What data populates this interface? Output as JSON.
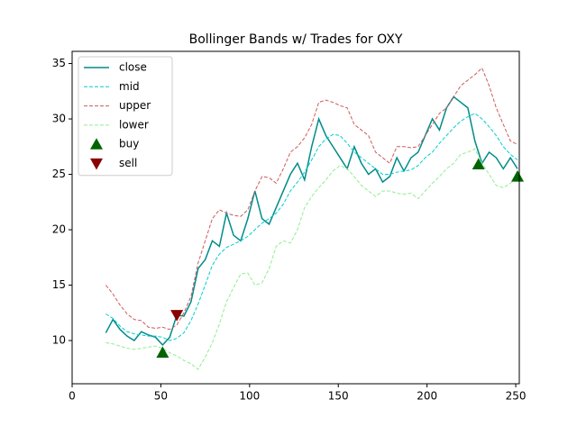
{
  "chart_data": {
    "type": "line",
    "title": "Bollinger Bands w/ Trades for OXY",
    "x": [
      19,
      23,
      27,
      31,
      35,
      39,
      43,
      47,
      51,
      55,
      59,
      63,
      67,
      71,
      75,
      79,
      83,
      87,
      91,
      95,
      99,
      103,
      107,
      111,
      115,
      119,
      123,
      127,
      131,
      135,
      139,
      143,
      147,
      151,
      155,
      159,
      163,
      167,
      171,
      175,
      179,
      183,
      187,
      191,
      195,
      199,
      203,
      207,
      211,
      215,
      219,
      223,
      227,
      231,
      235,
      239,
      243,
      247,
      251
    ],
    "series": [
      {
        "name": "close",
        "color": "#008b8b",
        "linestyle": "solid",
        "values": [
          10.7,
          11.9,
          11.0,
          10.4,
          10.0,
          10.8,
          10.5,
          10.3,
          9.6,
          10.3,
          12.3,
          12.2,
          13.5,
          16.5,
          17.3,
          19.0,
          18.5,
          21.5,
          19.5,
          19.0,
          21.0,
          23.5,
          21.0,
          20.5,
          22.0,
          23.5,
          25.0,
          26.0,
          24.5,
          27.5,
          30.0,
          28.5,
          27.5,
          26.5,
          25.5,
          27.5,
          26.0,
          25.0,
          25.5,
          24.3,
          24.8,
          26.5,
          25.3,
          26.5,
          27.0,
          28.5,
          30.0,
          29.0,
          31.0,
          32.0,
          31.5,
          31.0,
          28.0,
          26.0,
          27.0,
          26.5,
          25.5,
          26.5,
          25.5
        ]
      },
      {
        "name": "mid",
        "color": "#00ced1",
        "linestyle": "dashed",
        "values": [
          12.4,
          12.0,
          11.3,
          10.8,
          10.6,
          10.5,
          10.4,
          10.4,
          10.3,
          10.0,
          10.2,
          10.7,
          11.8,
          13.3,
          15.0,
          16.8,
          17.8,
          18.4,
          18.7,
          19.0,
          19.4,
          20.0,
          20.6,
          21.0,
          21.5,
          22.3,
          23.5,
          24.3,
          25.2,
          26.3,
          27.5,
          28.2,
          28.6,
          28.5,
          27.8,
          27.0,
          26.5,
          26.0,
          25.5,
          25.0,
          25.0,
          25.2,
          25.3,
          25.4,
          25.8,
          26.5,
          27.0,
          27.8,
          28.5,
          29.2,
          29.8,
          30.2,
          30.5,
          30.0,
          29.3,
          28.5,
          27.5,
          26.8,
          26.3
        ]
      },
      {
        "name": "upper",
        "color": "#cd5c5c",
        "linestyle": "dashed",
        "values": [
          15.0,
          14.2,
          13.2,
          12.4,
          11.9,
          11.8,
          11.2,
          11.1,
          11.2,
          11.0,
          11.4,
          12.5,
          14.0,
          17.0,
          19.0,
          21.0,
          21.8,
          21.5,
          21.3,
          21.2,
          21.8,
          23.5,
          24.8,
          24.7,
          24.2,
          25.5,
          27.0,
          27.5,
          28.3,
          29.5,
          31.5,
          31.7,
          31.5,
          31.2,
          31.0,
          29.5,
          29.0,
          28.5,
          27.0,
          26.5,
          26.0,
          27.5,
          27.5,
          27.4,
          27.5,
          28.5,
          29.5,
          30.5,
          31.0,
          32.0,
          33.0,
          33.5,
          34.0,
          34.6,
          33.0,
          31.0,
          29.5,
          28.0,
          27.7
        ]
      },
      {
        "name": "lower",
        "color": "#90ee90",
        "linestyle": "dashed",
        "values": [
          9.8,
          9.7,
          9.5,
          9.3,
          9.2,
          9.3,
          9.4,
          9.5,
          9.3,
          8.9,
          8.6,
          8.2,
          7.9,
          7.4,
          8.5,
          9.8,
          11.5,
          13.5,
          14.8,
          16.0,
          16.1,
          15.0,
          15.2,
          16.5,
          18.5,
          19.0,
          18.8,
          20.0,
          22.0,
          23.0,
          23.8,
          24.5,
          25.3,
          25.8,
          25.5,
          24.8,
          24.0,
          23.5,
          23.0,
          23.5,
          23.5,
          23.3,
          23.2,
          23.3,
          22.8,
          23.5,
          24.2,
          24.8,
          25.5,
          26.0,
          26.8,
          27.0,
          27.3,
          26.0,
          25.0,
          24.0,
          23.8,
          24.2,
          24.6
        ]
      },
      {
        "name": "buy",
        "color": "#006400",
        "marker": "up",
        "x": [
          51,
          229,
          251
        ],
        "values": [
          8.9,
          25.9,
          24.8
        ]
      },
      {
        "name": "sell",
        "color": "#8b0000",
        "marker": "down",
        "x": [
          59
        ],
        "values": [
          12.3
        ]
      }
    ],
    "xlim": [
      0,
      252
    ],
    "ylim": [
      6.1,
      36.1
    ],
    "xticks": [
      0,
      50,
      100,
      150,
      200,
      250
    ],
    "yticks": [
      10,
      15,
      20,
      25,
      30,
      35
    ],
    "legend": "upper left"
  }
}
